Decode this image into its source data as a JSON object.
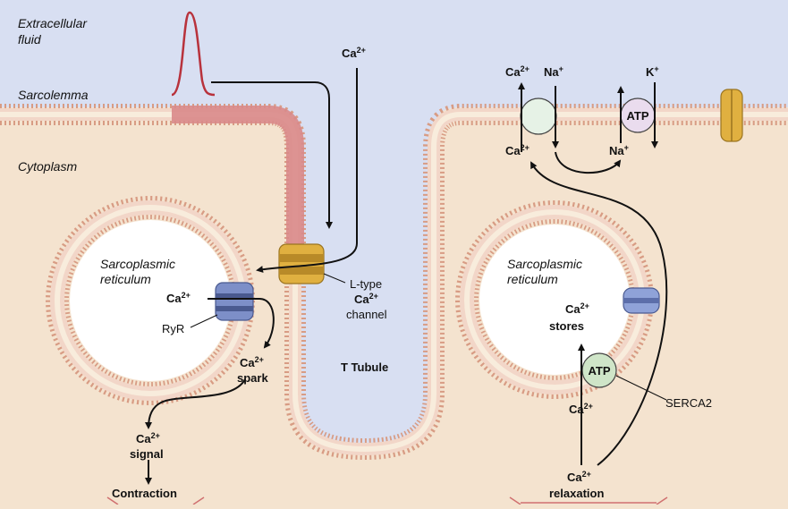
{
  "regions": {
    "extracellular_1": "Extracellular",
    "extracellular_2": "fluid",
    "sarcolemma": "Sarcolemma",
    "cytoplasm": "Cytoplasm",
    "t_tubule": "T Tubule"
  },
  "sr_left": {
    "line1": "Sarcoplasmic",
    "line2": "reticulum"
  },
  "sr_right": {
    "line1": "Sarcoplasmic",
    "line2": "reticulum"
  },
  "ions": {
    "ca": "Ca",
    "ca_charge": "2+",
    "na": "Na",
    "k": "K",
    "plus": "+"
  },
  "channel": {
    "line1": "L-type",
    "line2_ion": "Ca",
    "line2_charge": "2+",
    "line3": "channel"
  },
  "ryr": "RyR",
  "spark": {
    "ion": "Ca",
    "charge": "2+",
    "word": "spark"
  },
  "signal": {
    "ion": "Ca",
    "charge": "2+",
    "word": "signal"
  },
  "contraction": "Contraction",
  "stores": {
    "ion": "Ca",
    "charge": "2+",
    "word": "stores"
  },
  "atp": "ATP",
  "serca": "SERCA2",
  "relaxation": {
    "ion": "Ca",
    "charge": "2+",
    "word": "relaxation"
  },
  "colors": {
    "extracellular": "#d8dff2",
    "cytoplasm": "#f4e3cf",
    "membrane_head": "#e8b49a",
    "membrane_core": "#f8ecdc",
    "t_tubule_fill": "#d8dff2",
    "depolarized": "#d98a8a",
    "action_potential": "#b8323c",
    "l_type_channel": "#e0b040",
    "ryr_channel": "#7d8fc8",
    "atp_fill": "#cfe5c8",
    "ncx_fill": "#e6f2e6"
  }
}
